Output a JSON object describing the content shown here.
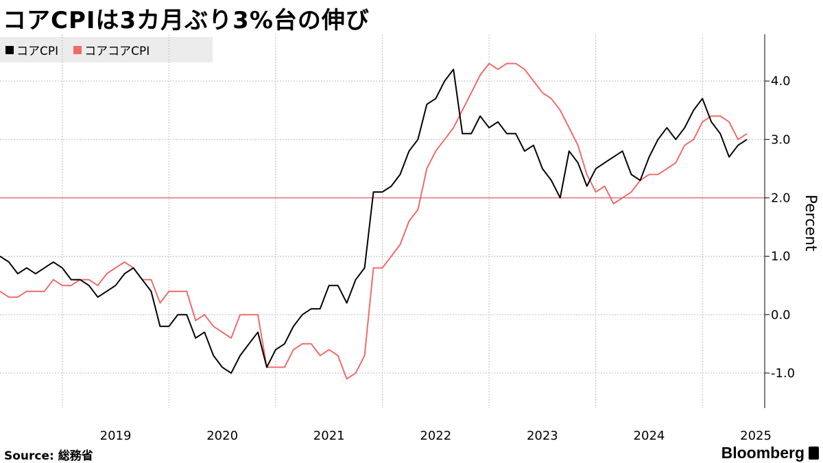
{
  "chart_data": {
    "type": "line",
    "title": "コアCPIは3カ月ぶり3%台の伸び",
    "ylabel": "Percent",
    "source": "Source: 総務省",
    "brand": "Bloomberg",
    "ylim": [
      -1.6,
      4.8
    ],
    "yticks": [
      -1.0,
      0.0,
      1.0,
      2.0,
      3.0,
      4.0
    ],
    "ytick_labels": [
      "-1.0",
      "0.0",
      "1.0",
      "2.0",
      "3.0",
      "4.0"
    ],
    "xlim": [
      "2018-06",
      "2025-08"
    ],
    "x_ticks": [
      "2019",
      "2020",
      "2021",
      "2022",
      "2023",
      "2024",
      "2025"
    ],
    "reference_line": {
      "y": 2.0,
      "color": "#e03a4a"
    },
    "grid": true,
    "legend_position": "top-left",
    "x_start": "2018-06",
    "series": [
      {
        "name": "コアCPI",
        "color": "#000000",
        "values": [
          1.0,
          0.9,
          0.7,
          0.8,
          0.7,
          0.8,
          0.9,
          0.8,
          0.6,
          0.6,
          0.5,
          0.3,
          0.4,
          0.5,
          0.7,
          0.8,
          0.6,
          0.4,
          -0.2,
          -0.2,
          0.0,
          0.0,
          -0.4,
          -0.3,
          -0.7,
          -0.9,
          -1.0,
          -0.7,
          -0.5,
          -0.3,
          -0.9,
          -0.6,
          -0.5,
          -0.2,
          0.0,
          0.1,
          0.1,
          0.5,
          0.5,
          0.2,
          0.6,
          0.8,
          2.1,
          2.1,
          2.2,
          2.4,
          2.8,
          3.0,
          3.6,
          3.7,
          4.0,
          4.2,
          3.1,
          3.1,
          3.4,
          3.2,
          3.3,
          3.1,
          3.1,
          2.8,
          2.9,
          2.5,
          2.3,
          2.0,
          2.8,
          2.6,
          2.2,
          2.5,
          2.6,
          2.7,
          2.8,
          2.4,
          2.3,
          2.7,
          3.0,
          3.2,
          3.0,
          3.2,
          3.5,
          3.7,
          3.3,
          3.1,
          2.7,
          2.9,
          3.0
        ]
      },
      {
        "name": "コアコアCPI",
        "color": "#f06a6a",
        "values": [
          0.4,
          0.3,
          0.3,
          0.4,
          0.4,
          0.4,
          0.6,
          0.5,
          0.5,
          0.6,
          0.6,
          0.5,
          0.7,
          0.8,
          0.9,
          0.8,
          0.6,
          0.6,
          0.2,
          0.4,
          0.4,
          0.4,
          -0.1,
          0.0,
          -0.2,
          -0.3,
          -0.4,
          0.0,
          0.0,
          0.0,
          -0.9,
          -0.9,
          -0.9,
          -0.6,
          -0.5,
          -0.5,
          -0.7,
          -0.6,
          -0.7,
          -1.1,
          -1.0,
          -0.7,
          0.8,
          0.8,
          1.0,
          1.2,
          1.6,
          1.8,
          2.5,
          2.8,
          3.0,
          3.2,
          3.5,
          3.8,
          4.1,
          4.3,
          4.2,
          4.3,
          4.3,
          4.2,
          4.0,
          3.8,
          3.7,
          3.5,
          3.2,
          2.9,
          2.4,
          2.1,
          2.2,
          1.9,
          2.0,
          2.1,
          2.3,
          2.4,
          2.4,
          2.5,
          2.6,
          2.9,
          3.0,
          3.3,
          3.4,
          3.4,
          3.3,
          3.0,
          3.1
        ]
      }
    ]
  }
}
